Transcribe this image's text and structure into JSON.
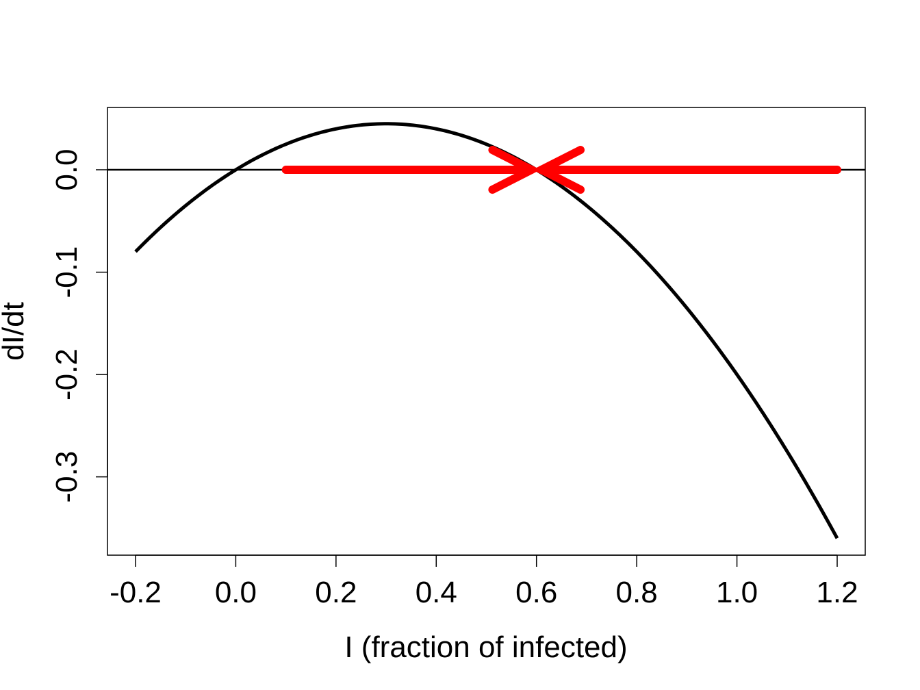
{
  "chart_data": {
    "type": "line",
    "xlabel": "I (fraction of infected)",
    "ylabel": "dI/dt",
    "xlim": [
      -0.256,
      1.256
    ],
    "ylim": [
      -0.3765,
      0.0609
    ],
    "x_ticks": [
      "-0.2",
      "0.0",
      "0.2",
      "0.4",
      "0.6",
      "0.8",
      "1.0",
      "1.2"
    ],
    "x_tick_values": [
      -0.2,
      0.0,
      0.2,
      0.4,
      0.6,
      0.8,
      1.0,
      1.2
    ],
    "y_ticks": [
      "-0.3",
      "-0.2",
      "-0.1",
      "0.0"
    ],
    "y_tick_values": [
      -0.3,
      -0.2,
      -0.1,
      0.0
    ],
    "grid": false,
    "series": [
      {
        "function": "0.5*I*(0.6 - I)",
        "color": "#000000",
        "x": [
          -0.2,
          -0.1,
          0.0,
          0.1,
          0.2,
          0.3,
          0.4,
          0.5,
          0.6,
          0.7,
          0.8,
          0.9,
          1.0,
          1.1,
          1.2
        ],
        "y": [
          -0.08,
          -0.035,
          0.0,
          0.025,
          0.04,
          0.045,
          0.04,
          0.025,
          0.0,
          -0.035,
          -0.08,
          -0.135,
          -0.2,
          -0.275,
          -0.36
        ]
      }
    ],
    "hline": {
      "y": 0.0,
      "color": "#000000"
    },
    "annotations": [
      {
        "type": "arrow",
        "from": [
          0.1,
          0.0
        ],
        "to": [
          0.59,
          0.0
        ],
        "color": "#ff0000"
      },
      {
        "type": "arrow",
        "from": [
          1.2,
          0.0
        ],
        "to": [
          0.61,
          0.0
        ],
        "color": "#ff0000"
      }
    ]
  }
}
